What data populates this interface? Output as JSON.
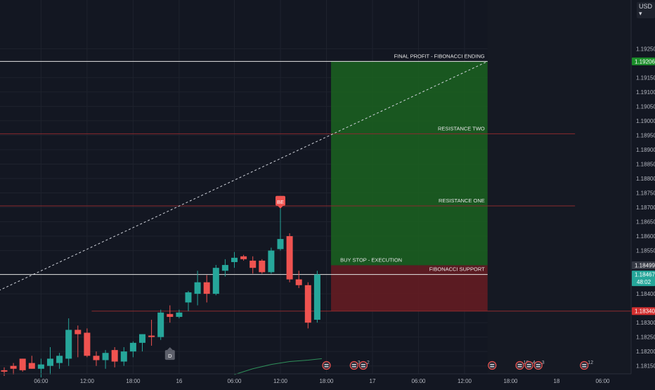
{
  "colors": {
    "background": "#131722",
    "grid": "#1e222d",
    "up": "#26a69a",
    "down": "#ef5350",
    "axis_text": "#b2b5be",
    "target_zone": "#1b5e20",
    "stop_zone": "#641c22",
    "white_line": "#e6e6e6",
    "red_line": "#8b2a2e"
  },
  "axis": {
    "currency": "USD",
    "currency_menu_icon": "chevron-down-icon"
  },
  "chart_data": {
    "type": "candlestick",
    "title": "",
    "ylim": [
      1.1812,
      1.1938
    ],
    "y_ticks": [
      "1.19250",
      "1.19150",
      "1.19100",
      "1.19050",
      "1.19000",
      "1.18950",
      "1.18900",
      "1.18850",
      "1.18800",
      "1.18750",
      "1.18700",
      "1.18650",
      "1.18600",
      "1.18550",
      "1.18400",
      "1.18300",
      "1.18250",
      "1.18200",
      "1.18150"
    ],
    "y_tick_values": [
      1.1925,
      1.1915,
      1.191,
      1.1905,
      1.19,
      1.1895,
      1.189,
      1.1885,
      1.188,
      1.1875,
      1.187,
      1.1865,
      1.186,
      1.1855,
      1.184,
      1.183,
      1.1825,
      1.182,
      1.1815
    ],
    "x_ticks": [
      "06:00",
      "12:00",
      "18:00",
      "16",
      "06:00",
      "12:00",
      "18:00",
      "17",
      "06:00",
      "12:00",
      "18:00",
      "18",
      "06:00"
    ],
    "x_tick_index": [
      4,
      9,
      14,
      19,
      25,
      30,
      35,
      40,
      45,
      50,
      55,
      60,
      65
    ],
    "price_labels": [
      {
        "text": "1.19206",
        "value": 1.19206,
        "color": "#1b8d2a"
      },
      {
        "text": "1.18499",
        "value": 1.18499,
        "color": "#363a45"
      },
      {
        "text": "1.18467",
        "value": 1.18467,
        "color": "#26a69a",
        "sub": "48:02"
      },
      {
        "text": "1.18340",
        "value": 1.1834,
        "color": "#d32f2f"
      }
    ],
    "candles": [
      {
        "o": 1.18135,
        "h": 1.18145,
        "l": 1.18115,
        "c": 1.1813
      },
      {
        "o": 1.1815,
        "h": 1.1816,
        "l": 1.1812,
        "c": 1.1814
      },
      {
        "o": 1.18175,
        "h": 1.18175,
        "l": 1.1813,
        "c": 1.18135
      },
      {
        "o": 1.1816,
        "h": 1.18185,
        "l": 1.1814,
        "c": 1.1814
      },
      {
        "o": 1.1814,
        "h": 1.18175,
        "l": 1.1811,
        "c": 1.18155
      },
      {
        "o": 1.1815,
        "h": 1.18215,
        "l": 1.1812,
        "c": 1.18175
      },
      {
        "o": 1.1816,
        "h": 1.18195,
        "l": 1.1814,
        "c": 1.18185
      },
      {
        "o": 1.18175,
        "h": 1.18315,
        "l": 1.1815,
        "c": 1.18275
      },
      {
        "o": 1.18275,
        "h": 1.1829,
        "l": 1.1818,
        "c": 1.1826
      },
      {
        "o": 1.18265,
        "h": 1.1828,
        "l": 1.1818,
        "c": 1.18185
      },
      {
        "o": 1.18185,
        "h": 1.182,
        "l": 1.1815,
        "c": 1.1817
      },
      {
        "o": 1.1817,
        "h": 1.18205,
        "l": 1.1814,
        "c": 1.18195
      },
      {
        "o": 1.18205,
        "h": 1.18215,
        "l": 1.18145,
        "c": 1.18165
      },
      {
        "o": 1.18165,
        "h": 1.18215,
        "l": 1.1815,
        "c": 1.182
      },
      {
        "o": 1.182,
        "h": 1.18235,
        "l": 1.1818,
        "c": 1.1823
      },
      {
        "o": 1.1823,
        "h": 1.1826,
        "l": 1.182,
        "c": 1.1826
      },
      {
        "o": 1.18255,
        "h": 1.1831,
        "l": 1.1822,
        "c": 1.1825
      },
      {
        "o": 1.1825,
        "h": 1.18345,
        "l": 1.1824,
        "c": 1.18335
      },
      {
        "o": 1.1833,
        "h": 1.1836,
        "l": 1.183,
        "c": 1.1832
      },
      {
        "o": 1.1832,
        "h": 1.18345,
        "l": 1.18315,
        "c": 1.18335
      },
      {
        "o": 1.1837,
        "h": 1.1841,
        "l": 1.1834,
        "c": 1.18405
      },
      {
        "o": 1.184,
        "h": 1.1848,
        "l": 1.1836,
        "c": 1.1844
      },
      {
        "o": 1.1844,
        "h": 1.18465,
        "l": 1.1837,
        "c": 1.184
      },
      {
        "o": 1.184,
        "h": 1.185,
        "l": 1.18395,
        "c": 1.1849
      },
      {
        "o": 1.1848,
        "h": 1.1852,
        "l": 1.1846,
        "c": 1.185
      },
      {
        "o": 1.1851,
        "h": 1.18545,
        "l": 1.1849,
        "c": 1.18525
      },
      {
        "o": 1.1853,
        "h": 1.18535,
        "l": 1.18515,
        "c": 1.1852
      },
      {
        "o": 1.18515,
        "h": 1.1853,
        "l": 1.1847,
        "c": 1.1849
      },
      {
        "o": 1.18515,
        "h": 1.1852,
        "l": 1.1847,
        "c": 1.18475
      },
      {
        "o": 1.18475,
        "h": 1.1856,
        "l": 1.1847,
        "c": 1.1855
      },
      {
        "o": 1.18555,
        "h": 1.187,
        "l": 1.1855,
        "c": 1.1859
      },
      {
        "o": 1.186,
        "h": 1.1861,
        "l": 1.1844,
        "c": 1.1845
      },
      {
        "o": 1.1845,
        "h": 1.1848,
        "l": 1.1842,
        "c": 1.1843
      },
      {
        "o": 1.1843,
        "h": 1.1844,
        "l": 1.1828,
        "c": 1.183
      },
      {
        "o": 1.1831,
        "h": 1.1848,
        "l": 1.183,
        "c": 1.18467
      }
    ],
    "volume_line": [
      [
        25,
        1.1812
      ],
      [
        27,
        1.1814
      ],
      [
        29,
        1.18155
      ],
      [
        31,
        1.18165
      ],
      [
        33,
        1.1817
      ],
      [
        34.5,
        1.18175
      ]
    ],
    "zones": [
      {
        "name": "target",
        "x0": 35.5,
        "x1": 52.5,
        "y0": 1.19206,
        "y1": 1.18499
      },
      {
        "name": "stop",
        "x0": 35.5,
        "x1": 52.5,
        "y0": 1.18499,
        "y1": 1.1834
      }
    ],
    "hlines": [
      {
        "value": 1.19206,
        "x1": 52.5,
        "style": "white"
      },
      {
        "value": 1.18955,
        "x1": 62,
        "style": "red"
      },
      {
        "value": 1.18705,
        "x1": 62,
        "style": "red"
      },
      {
        "value": 1.18467,
        "x1": 52.5,
        "style": "white"
      },
      {
        "value": 1.1834,
        "x0": 9.5,
        "x1": 80,
        "style": "red"
      }
    ],
    "trend_line": [
      [
        -1,
        1.18405
      ],
      [
        52.5,
        1.19206
      ]
    ],
    "annotations": [
      {
        "text": "FINAL PROFIT - FIBONACCI ENDING",
        "x": 52.5,
        "y": 1.19206,
        "align": "end"
      },
      {
        "text": "RESISTANCE TWO",
        "x": 52.5,
        "y": 1.18955,
        "align": "end"
      },
      {
        "text": "RESISTANCE ONE",
        "x": 52.5,
        "y": 1.18705,
        "align": "end"
      },
      {
        "text": "BUY STOP - EXECUTION",
        "x": 36.5,
        "y": 1.18499,
        "align": "start"
      },
      {
        "text": "FIBONACCI SUPPORT",
        "x": 52.5,
        "y": 1.18467,
        "align": "end"
      }
    ],
    "markers": [
      {
        "text": "BE",
        "x": 30,
        "y": 1.1872,
        "color": "#ef5350",
        "dir": "down"
      },
      {
        "text": "D",
        "x": 18,
        "y": 1.182,
        "color": "#5d606b",
        "dir": "up"
      }
    ],
    "event_icons": [
      {
        "x": 35,
        "label": ""
      },
      {
        "x": 38,
        "label": "3"
      },
      {
        "x": 39,
        "label": "2"
      },
      {
        "x": 53,
        "label": ""
      },
      {
        "x": 56,
        "label": "10"
      },
      {
        "x": 57,
        "label": "4"
      },
      {
        "x": 58,
        "label": "3"
      },
      {
        "x": 63,
        "label": "12"
      }
    ]
  }
}
